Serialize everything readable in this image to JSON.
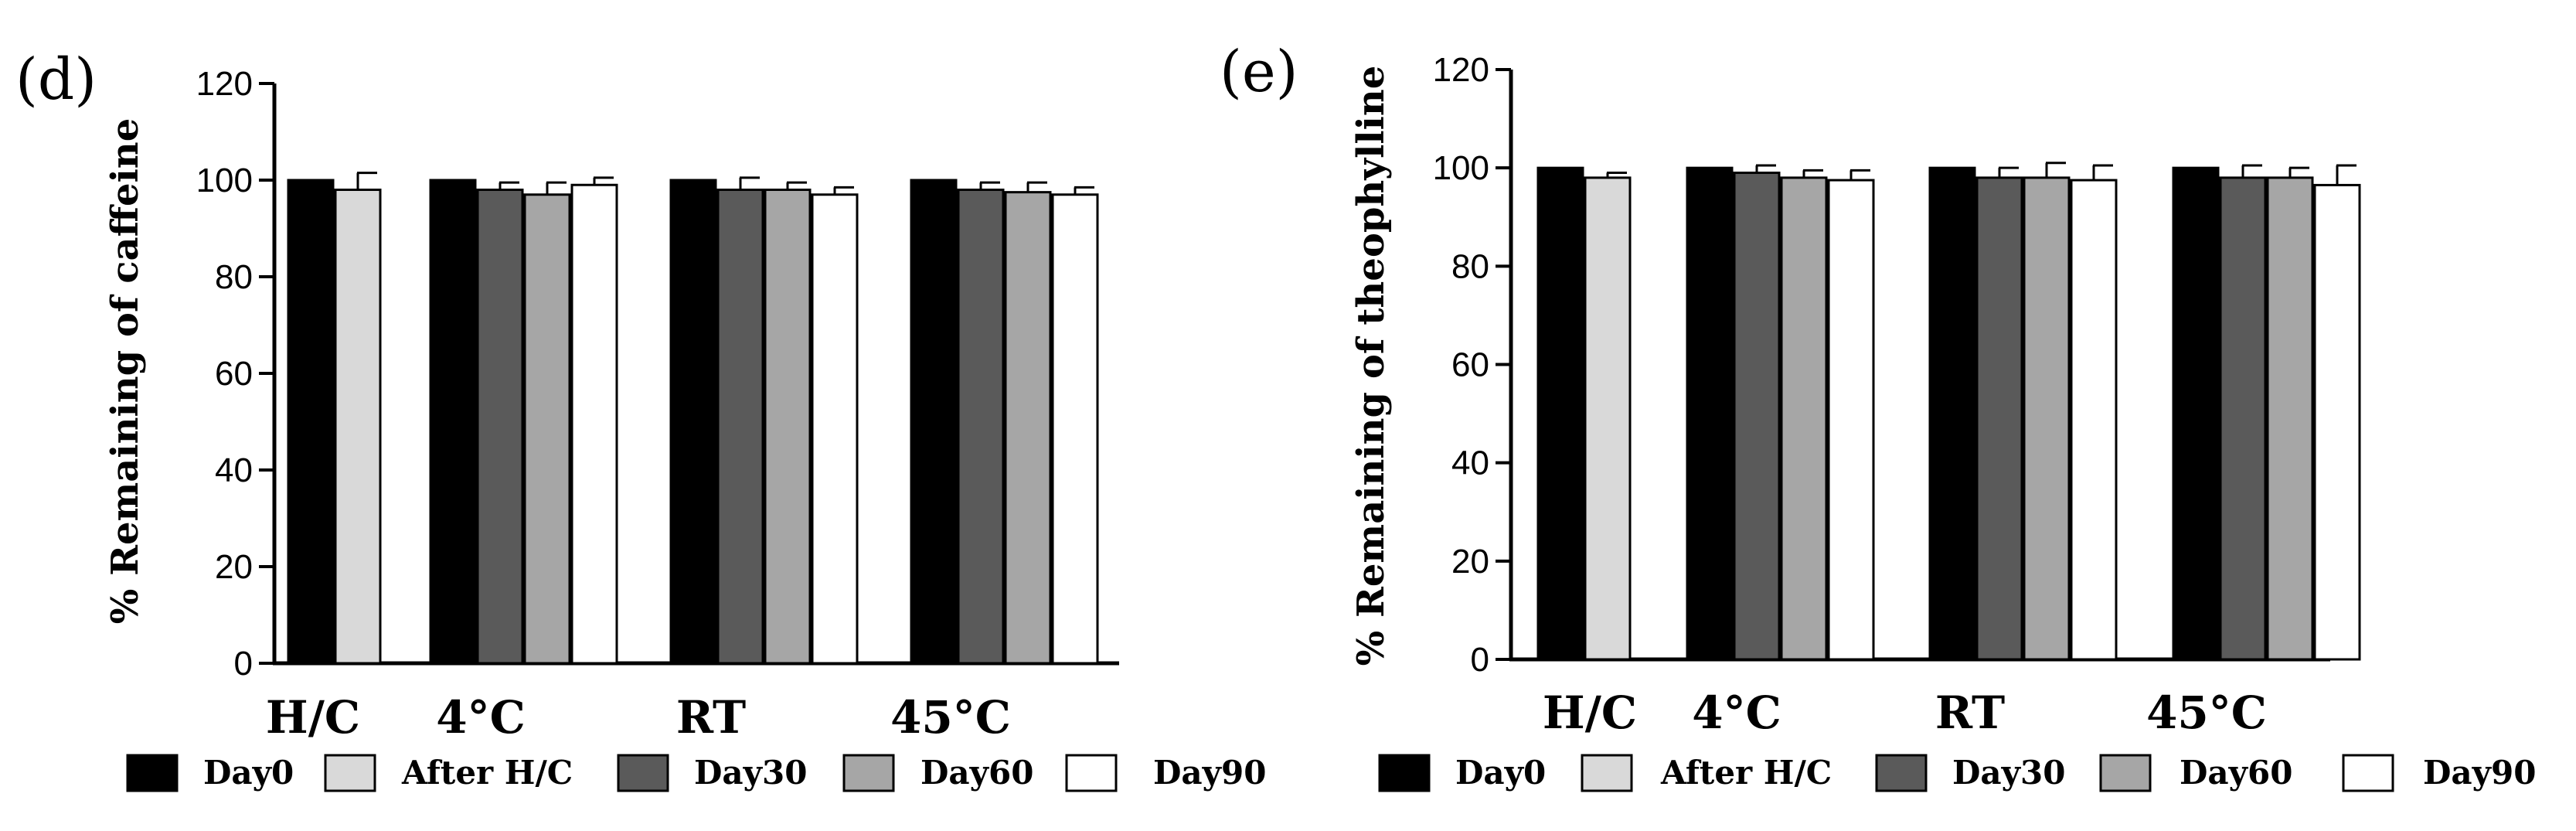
{
  "chart_data": [
    {
      "panel_label": "(d)",
      "type": "bar",
      "ylabel": "% Remaining of caffeine",
      "xlabel": "",
      "ylim": [
        0,
        120
      ],
      "yticks": [
        0,
        20,
        40,
        60,
        80,
        100,
        120
      ],
      "categories": [
        "H/C",
        "4°C",
        "RT",
        "45°C"
      ],
      "series": [
        {
          "name": "Day0",
          "color": "#000000",
          "values": [
            100,
            100,
            100,
            100
          ],
          "errors": [
            0,
            0,
            0,
            0
          ]
        },
        {
          "name": "After H/C",
          "color": "#d9d9d9",
          "values": [
            98,
            null,
            null,
            null
          ],
          "errors": [
            3.5,
            0,
            0,
            0
          ]
        },
        {
          "name": "Day30",
          "color": "#5a5a5a",
          "values": [
            null,
            98,
            98,
            98
          ],
          "errors": [
            0,
            1.5,
            2.5,
            1.5
          ]
        },
        {
          "name": "Day60",
          "color": "#a6a6a6",
          "values": [
            null,
            97,
            98,
            97.5
          ],
          "errors": [
            0,
            2.5,
            1.5,
            2
          ]
        },
        {
          "name": "Day90",
          "color": "#ffffff",
          "values": [
            null,
            99,
            97,
            97
          ],
          "errors": [
            0,
            1.5,
            1.5,
            1.5
          ]
        }
      ],
      "legend_position": "bottom"
    },
    {
      "panel_label": "(e)",
      "type": "bar",
      "ylabel": "% Remaining of theophylline",
      "xlabel": "",
      "ylim": [
        0,
        120
      ],
      "yticks": [
        0,
        20,
        40,
        60,
        80,
        100,
        120
      ],
      "categories": [
        "H/C",
        "4°C",
        "RT",
        "45°C"
      ],
      "series": [
        {
          "name": "Day0",
          "color": "#000000",
          "values": [
            100,
            100,
            100,
            100
          ],
          "errors": [
            0,
            0,
            0,
            0
          ]
        },
        {
          "name": "After H/C",
          "color": "#d9d9d9",
          "values": [
            98,
            null,
            null,
            null
          ],
          "errors": [
            1,
            0,
            0,
            0
          ]
        },
        {
          "name": "Day30",
          "color": "#5a5a5a",
          "values": [
            null,
            99,
            98,
            98
          ],
          "errors": [
            0,
            1.5,
            2,
            2.5
          ]
        },
        {
          "name": "Day60",
          "color": "#a6a6a6",
          "values": [
            null,
            98,
            98,
            98
          ],
          "errors": [
            0,
            1.5,
            3,
            2
          ]
        },
        {
          "name": "Day90",
          "color": "#ffffff",
          "values": [
            null,
            97.5,
            97.5,
            96.5
          ],
          "errors": [
            0,
            2,
            3,
            4
          ]
        }
      ],
      "legend_position": "bottom"
    }
  ]
}
